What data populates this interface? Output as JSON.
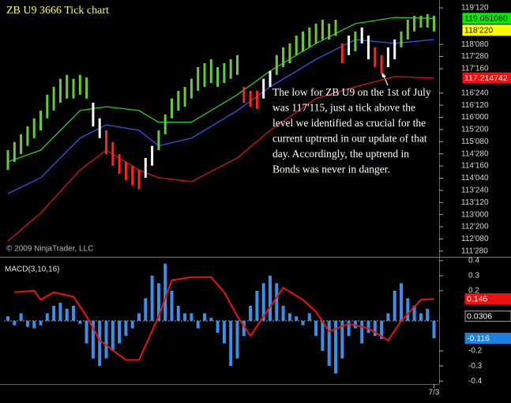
{
  "chart_data": [
    {
      "type": "range",
      "title": "ZB U9 3666 Tick chart",
      "copyright": "© 2009 NinjaTrader, LLC",
      "annotation": [
        "The low for ZB U9 on the 1st of July",
        "was 117'115, just a tick above the",
        "level we identified as crucial for the",
        "current uptrend in our update of that",
        "day. Accordingly, the uptrend in",
        "Bonds was never in danger."
      ],
      "high": [
        114.99,
        115.24,
        115.48,
        115.72,
        115.97,
        116.21,
        116.7,
        116.94,
        117.19,
        117.31,
        117.19,
        117.31,
        117.23,
        116.45,
        115.97,
        115.6,
        115.24,
        114.87,
        114.63,
        114.51,
        114.38,
        114.75,
        115.12,
        115.6,
        116.09,
        116.58,
        116.82,
        116.94,
        117.19,
        117.55,
        117.67,
        117.79,
        117.55,
        117.67,
        117.79,
        117.92,
        116.94,
        116.82,
        116.82,
        117.19,
        117.43,
        117.92,
        118.16,
        118.28,
        118.52,
        118.65,
        118.77,
        118.89,
        119.01,
        118.89,
        119.01,
        118.28,
        118.52,
        118.65,
        118.77,
        118.52,
        118.16,
        117.92,
        118.16,
        118.4,
        118.65,
        119.01,
        119.13,
        119.13,
        119.18,
        119.13
      ],
      "low": [
        114.38,
        114.63,
        114.87,
        115.12,
        115.36,
        115.6,
        115.97,
        116.21,
        116.45,
        116.58,
        116.58,
        116.7,
        116.58,
        115.72,
        115.36,
        114.87,
        114.51,
        114.26,
        114.07,
        113.9,
        113.78,
        114.14,
        114.51,
        114.99,
        115.48,
        115.97,
        116.21,
        116.33,
        116.58,
        116.82,
        116.94,
        117.06,
        116.94,
        117.06,
        117.19,
        117.31,
        116.45,
        116.33,
        116.26,
        116.58,
        116.94,
        117.31,
        117.55,
        117.67,
        117.92,
        118.04,
        118.16,
        118.28,
        118.4,
        118.4,
        118.52,
        117.67,
        117.92,
        118.04,
        118.28,
        117.79,
        117.55,
        117.36,
        117.55,
        117.79,
        118.16,
        118.4,
        118.65,
        118.77,
        118.77,
        118.65
      ],
      "colors": [
        "#66cc33",
        "#66cc33",
        "#66cc33",
        "#66cc33",
        "#66cc33",
        "#66cc33",
        "#66cc33",
        "#66cc33",
        "#66cc33",
        "#66cc33",
        "#66cc33",
        "#66cc33",
        "#66cc33",
        "#ffffff",
        "#ffffff",
        "#ff2222",
        "#ff2222",
        "#ff2222",
        "#ff2222",
        "#ff2222",
        "#ff2222",
        "#ffffff",
        "#ffffff",
        "#66cc33",
        "#66cc33",
        "#66cc33",
        "#66cc33",
        "#66cc33",
        "#66cc33",
        "#66cc33",
        "#66cc33",
        "#66cc33",
        "#66cc33",
        "#66cc33",
        "#66cc33",
        "#66cc33",
        "#ff2222",
        "#ff2222",
        "#ff2222",
        "#ffffff",
        "#ffffff",
        "#66cc33",
        "#66cc33",
        "#66cc33",
        "#66cc33",
        "#66cc33",
        "#66cc33",
        "#66cc33",
        "#66cc33",
        "#66cc33",
        "#66cc33",
        "#ff2222",
        "#ffffff",
        "#66cc33",
        "#ffffff",
        "#ffffff",
        "#ff2222",
        "#ff2222",
        "#ffffff",
        "#ffffff",
        "#66cc33",
        "#66cc33",
        "#66cc33",
        "#66cc33",
        "#66cc33",
        "#66cc33"
      ],
      "series": [
        {
          "color": "#22cc22",
          "x": [
            0,
            5,
            11,
            15,
            20,
            23,
            28,
            35,
            40,
            47,
            53,
            59,
            65
          ],
          "values": [
            114.63,
            114.99,
            116.21,
            116.33,
            116.21,
            115.85,
            115.85,
            116.7,
            117.43,
            118.28,
            118.89,
            119.08,
            119.05
          ]
        },
        {
          "color": "#3355ee",
          "x": [
            0,
            5,
            11,
            15,
            20,
            23,
            28,
            35,
            40,
            47,
            53,
            59,
            65
          ],
          "values": [
            113.65,
            114.14,
            115.36,
            115.77,
            115.6,
            115.12,
            115.36,
            116.21,
            116.94,
            117.79,
            118.4,
            118.28,
            118.4
          ]
        },
        {
          "color": "#dd1111",
          "x": [
            0,
            5,
            11,
            15,
            20,
            23,
            28,
            35,
            40,
            47,
            53,
            59,
            65
          ],
          "values": [
            112.19,
            113.05,
            114.38,
            114.99,
            114.38,
            114.14,
            114.02,
            114.75,
            115.6,
            116.58,
            116.94,
            117.26,
            117.21
          ]
        }
      ],
      "value_labels": [
        {
          "value": 119.05108,
          "label": "119.051080",
          "color": "#00ee00",
          "text_color": "#000000"
        },
        {
          "value": 118.6875,
          "label": "118'220",
          "color": "#ffff00",
          "text_color": "#000000"
        },
        {
          "value": 117.214742,
          "label": "117.214742",
          "color": "#ee1111",
          "text_color": "#ffffff"
        }
      ],
      "ylim": [
        111.7,
        119.57
      ],
      "yticks": [
        {
          "value": 119.375,
          "label": "119'120"
        },
        {
          "value": 118.25,
          "label": "118'080"
        },
        {
          "value": 117.875,
          "label": "117'280"
        },
        {
          "value": 117.5,
          "label": "117'160"
        },
        {
          "value": 116.75,
          "label": "116'240"
        },
        {
          "value": 116.375,
          "label": "116'120"
        },
        {
          "value": 116.0,
          "label": "116'000"
        },
        {
          "value": 115.625,
          "label": "115'200"
        },
        {
          "value": 115.25,
          "label": "115'080"
        },
        {
          "value": 114.875,
          "label": "114'280"
        },
        {
          "value": 114.5,
          "label": "114'160"
        },
        {
          "value": 114.125,
          "label": "114'040"
        },
        {
          "value": 113.75,
          "label": "113'240"
        },
        {
          "value": 113.375,
          "label": "113'120"
        },
        {
          "value": 113.0,
          "label": "113'000"
        },
        {
          "value": 112.625,
          "label": "112'200"
        },
        {
          "value": 112.25,
          "label": "112'080"
        },
        {
          "value": 111.875,
          "label": "111'280"
        }
      ]
    },
    {
      "type": "bar",
      "title": "MACD(3,10,16)",
      "values": [
        0.03,
        -0.03,
        0.05,
        -0.04,
        -0.05,
        -0.03,
        0.05,
        0.1,
        0.12,
        0.08,
        0.1,
        -0.02,
        -0.15,
        -0.25,
        -0.3,
        -0.25,
        -0.2,
        -0.15,
        -0.1,
        -0.05,
        0.05,
        0.15,
        0.3,
        0.25,
        0.38,
        0.2,
        0.1,
        0.05,
        0.05,
        -0.05,
        0.05,
        0.02,
        -0.08,
        -0.15,
        -0.3,
        -0.25,
        -0.1,
        0.1,
        0.2,
        0.25,
        0.3,
        0.25,
        0.1,
        0.05,
        0.03,
        -0.03,
        0.05,
        -0.1,
        -0.2,
        -0.3,
        -0.35,
        -0.25,
        -0.1,
        -0.05,
        -0.15,
        -0.08,
        -0.1,
        -0.12,
        0.05,
        0.2,
        0.25,
        0.15,
        0.1,
        0.05,
        0.08,
        -0.116
      ],
      "color": "#3a8fe8",
      "series": [
        {
          "color": "#ee1111",
          "x": [
            1,
            4,
            5,
            7,
            10,
            12,
            14,
            18,
            20,
            23,
            25,
            28,
            31,
            33,
            35,
            37,
            39,
            42,
            45,
            47,
            49,
            52,
            55,
            58,
            60,
            63,
            65
          ],
          "values": [
            0.19,
            0.2,
            0.14,
            0.19,
            0.16,
            0.03,
            -0.13,
            -0.26,
            -0.26,
            0.03,
            0.27,
            0.29,
            0.29,
            0.19,
            0.03,
            -0.1,
            0.03,
            0.22,
            0.14,
            0.06,
            -0.07,
            -0.02,
            -0.05,
            -0.13,
            0.0,
            0.14,
            0.146
          ]
        }
      ],
      "value_labels": [
        {
          "value": 0.146,
          "label": "0.146",
          "color": "#ee1111",
          "text_color": "#ffffff"
        },
        {
          "value": 0.0306,
          "label": "0.0306",
          "color": "#000000",
          "text_color": "#ffffff"
        },
        {
          "value": -0.116,
          "label": "-0.116",
          "color": "#1e7fe0",
          "text_color": "#ffffff"
        }
      ],
      "ylim": [
        -0.42,
        0.42
      ],
      "yticks": [
        0.4,
        0.3,
        0.2,
        -0.2,
        -0.3,
        -0.4
      ],
      "xticks": [
        {
          "value": 65,
          "label": "7/3"
        }
      ]
    }
  ]
}
